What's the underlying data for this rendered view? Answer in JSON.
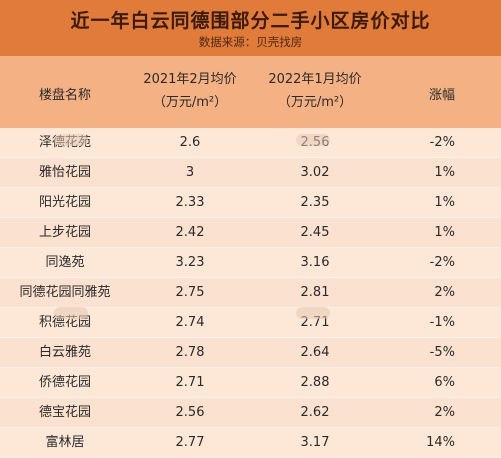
{
  "title": "近一年白云同德围部分二手小区房价对比",
  "subtitle": "数据来源：贝壳找房",
  "headers": {
    "name": "楼盘名称",
    "col2021_line1": "2021年2月均价",
    "col2021_line2": "（万元/m²）",
    "col2022_line1": "2022年1月均价",
    "col2022_line2": "（万元/m²）",
    "change": "涨幅"
  },
  "rows": [
    {
      "name": "泽德花苑",
      "p2021": "2.6",
      "p2022": "2.56",
      "change": "-2%"
    },
    {
      "name": "雅怡花园",
      "p2021": "3",
      "p2022": "3.02",
      "change": "1%"
    },
    {
      "name": "阳光花园",
      "p2021": "2.33",
      "p2022": "2.35",
      "change": "1%"
    },
    {
      "name": "上步花园",
      "p2021": "2.42",
      "p2022": "2.45",
      "change": "1%"
    },
    {
      "name": "同逸苑",
      "p2021": "3.23",
      "p2022": "3.16",
      "change": "-2%"
    },
    {
      "name": "同德花园同雅苑",
      "p2021": "2.75",
      "p2022": "2.81",
      "change": "2%"
    },
    {
      "name": "积德花园",
      "p2021": "2.74",
      "p2022": "2.71",
      "change": "-1%"
    },
    {
      "name": "白云雅苑",
      "p2021": "2.78",
      "p2022": "2.64",
      "change": "-5%"
    },
    {
      "name": "侨德花园",
      "p2021": "2.71",
      "p2022": "2.88",
      "change": "6%"
    },
    {
      "name": "德宝花园",
      "p2021": "2.56",
      "p2022": "2.62",
      "change": "2%"
    },
    {
      "name": "富林居",
      "p2021": "2.77",
      "p2022": "3.17",
      "change": "14%"
    }
  ],
  "colors": {
    "title_bg": "#e07b39",
    "header_bg": "#f4b183",
    "row_bg": "#fde8d8"
  }
}
